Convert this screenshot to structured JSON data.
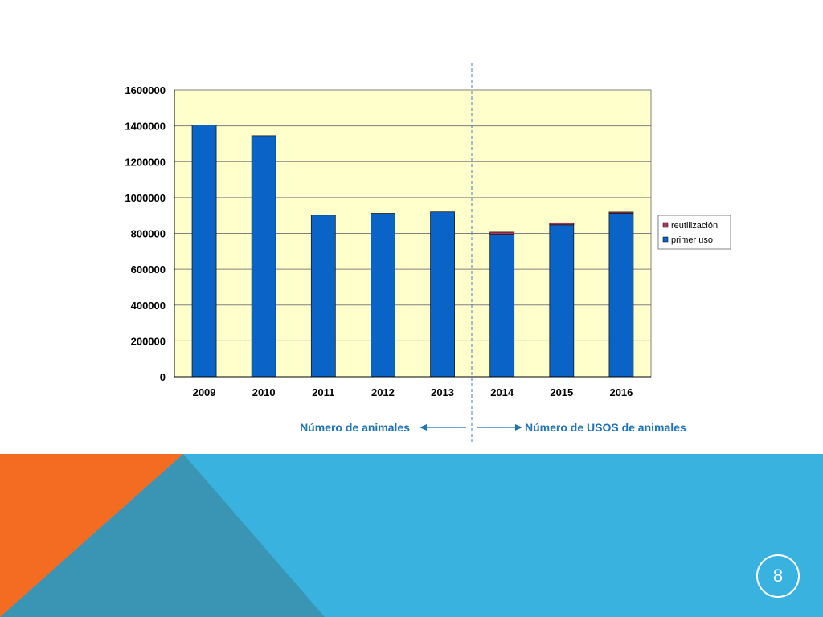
{
  "slide": {
    "page_number": "8",
    "colors": {
      "background": "#ffffff",
      "footer_blue": "#3ab2df",
      "footer_teal": "#3a94b4",
      "footer_orange": "#f36c21"
    }
  },
  "annotations": {
    "left": "Número de animales",
    "right": "Número de USOS de animales",
    "divider_between": [
      "2013",
      "2014"
    ]
  },
  "chart_data": {
    "type": "bar",
    "stacked": true,
    "categories": [
      "2009",
      "2010",
      "2011",
      "2012",
      "2013",
      "2014",
      "2015",
      "2016"
    ],
    "series": [
      {
        "name": "primer uso",
        "color": "#0a64c8",
        "values": [
          1405000,
          1345000,
          902000,
          912000,
          920000,
          795000,
          848000,
          912000
        ]
      },
      {
        "name": "reutilización",
        "color": "#a8375c",
        "values": [
          0,
          0,
          0,
          0,
          0,
          12000,
          11000,
          7000
        ]
      }
    ],
    "ylim": [
      0,
      1600000
    ],
    "yticks": [
      "0",
      "200000",
      "400000",
      "600000",
      "800000",
      "1000000",
      "1200000",
      "1400000",
      "1600000"
    ],
    "grid": true,
    "plot_background": "#ffffcc",
    "legend_position": "right",
    "legend": [
      "reutilización",
      "primer uso"
    ]
  }
}
